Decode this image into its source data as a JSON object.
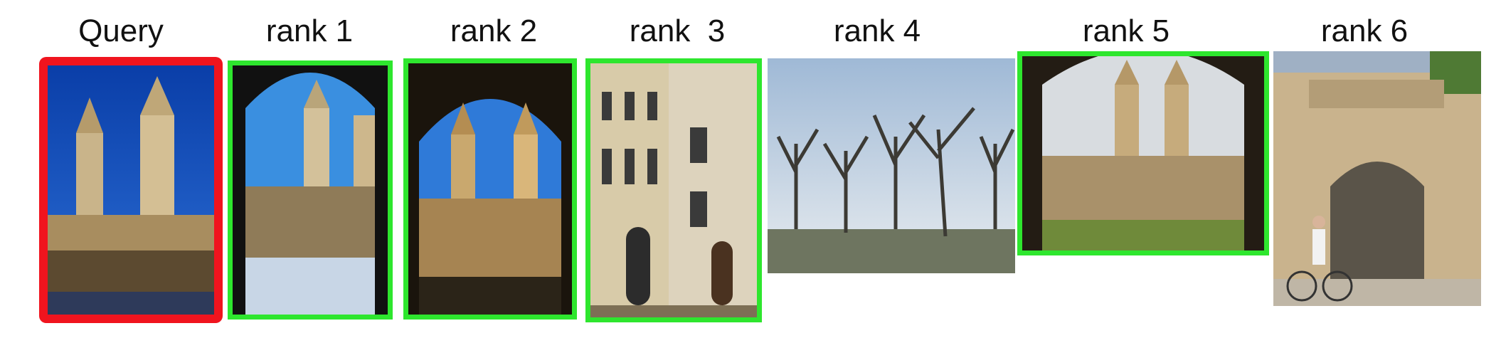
{
  "labels": {
    "query": "Query",
    "rank1": "rank 1",
    "rank2": "rank 2",
    "rank3": "rank  3",
    "rank4": "rank 4",
    "rank5": "rank 5",
    "rank6": "rank 6"
  },
  "colors": {
    "query_border": "#f0141e",
    "match_border": "#2ee62e"
  },
  "images": [
    {
      "id": "query",
      "status": "query"
    },
    {
      "id": "rank1",
      "status": "correct"
    },
    {
      "id": "rank2",
      "status": "correct"
    },
    {
      "id": "rank3",
      "status": "correct"
    },
    {
      "id": "rank4",
      "status": "none"
    },
    {
      "id": "rank5",
      "status": "correct"
    },
    {
      "id": "rank6",
      "status": "none"
    }
  ]
}
